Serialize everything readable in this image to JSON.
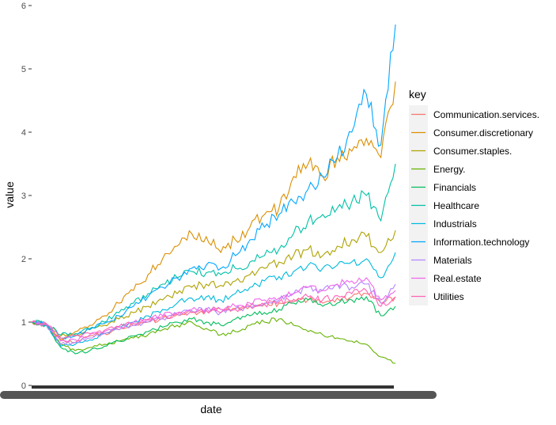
{
  "chart_data": {
    "type": "line",
    "title": "",
    "xlabel": "date",
    "ylabel": "value",
    "ylim": [
      0,
      6
    ],
    "yticks": [
      0,
      1,
      2,
      3,
      4,
      5,
      6
    ],
    "grid": false,
    "legend_placement": "right",
    "legend_title": "key",
    "x": [
      0,
      4,
      8,
      12,
      16,
      20,
      24,
      28,
      32,
      36,
      40,
      44,
      48,
      52,
      56,
      60,
      64,
      68,
      72,
      76,
      80,
      84,
      88,
      92,
      96,
      100
    ],
    "series": [
      {
        "name": "Communication.services.",
        "color": "#F8766D",
        "values": [
          1.0,
          0.95,
          0.72,
          0.68,
          0.78,
          0.82,
          0.88,
          0.95,
          1.0,
          1.05,
          1.12,
          1.15,
          1.18,
          1.2,
          1.22,
          1.25,
          1.28,
          1.3,
          1.32,
          1.35,
          1.3,
          1.38,
          1.4,
          1.45,
          1.3,
          1.4
        ]
      },
      {
        "name": "Consumer.discretionary",
        "color": "#DB8E00",
        "values": [
          1.0,
          0.98,
          0.72,
          0.85,
          0.95,
          1.1,
          1.3,
          1.5,
          1.75,
          2.0,
          2.2,
          2.4,
          2.35,
          2.1,
          2.3,
          2.5,
          2.7,
          2.8,
          3.3,
          3.5,
          3.3,
          3.6,
          3.7,
          3.9,
          3.6,
          4.8
        ]
      },
      {
        "name": "Consumer.staples.",
        "color": "#AEA200",
        "values": [
          1.0,
          0.97,
          0.78,
          0.8,
          0.88,
          0.95,
          1.05,
          1.15,
          1.25,
          1.35,
          1.45,
          1.55,
          1.6,
          1.58,
          1.65,
          1.75,
          1.85,
          1.95,
          2.05,
          2.15,
          2.05,
          2.2,
          2.3,
          2.35,
          2.1,
          2.45
        ]
      },
      {
        "name": "Energy.",
        "color": "#64B200",
        "values": [
          1.0,
          0.95,
          0.65,
          0.55,
          0.6,
          0.65,
          0.7,
          0.75,
          0.8,
          0.88,
          0.95,
          1.0,
          0.9,
          0.8,
          0.85,
          0.95,
          1.0,
          1.05,
          0.95,
          0.85,
          0.8,
          0.75,
          0.7,
          0.65,
          0.45,
          0.35
        ]
      },
      {
        "name": "Financials",
        "color": "#00BD5C",
        "values": [
          1.0,
          0.95,
          0.6,
          0.5,
          0.55,
          0.62,
          0.7,
          0.78,
          0.85,
          0.92,
          1.0,
          1.05,
          1.0,
          0.95,
          1.05,
          1.1,
          1.15,
          1.2,
          1.3,
          1.35,
          1.25,
          1.3,
          1.35,
          1.4,
          1.1,
          1.25
        ]
      },
      {
        "name": "Healthcare",
        "color": "#00C1A7",
        "values": [
          1.0,
          0.98,
          0.8,
          0.82,
          0.9,
          1.0,
          1.15,
          1.3,
          1.45,
          1.6,
          1.7,
          1.8,
          1.78,
          1.75,
          1.85,
          1.95,
          2.05,
          2.15,
          2.4,
          2.6,
          2.7,
          2.8,
          2.9,
          3.0,
          2.6,
          3.5
        ]
      },
      {
        "name": "Industrials",
        "color": "#00BADE",
        "values": [
          1.0,
          0.96,
          0.62,
          0.65,
          0.72,
          0.82,
          0.92,
          1.0,
          1.1,
          1.2,
          1.3,
          1.38,
          1.4,
          1.35,
          1.45,
          1.55,
          1.65,
          1.72,
          1.8,
          1.9,
          1.85,
          1.9,
          1.95,
          2.0,
          1.7,
          2.1
        ]
      },
      {
        "name": "Information.technology",
        "color": "#00A6FF",
        "values": [
          1.0,
          0.97,
          0.75,
          0.78,
          0.88,
          0.98,
          1.1,
          1.25,
          1.4,
          1.55,
          1.7,
          1.85,
          1.9,
          1.85,
          2.05,
          2.3,
          2.5,
          2.7,
          2.9,
          3.1,
          3.3,
          3.6,
          4.0,
          4.6,
          3.8,
          5.7
        ]
      },
      {
        "name": "Materials",
        "color": "#B385FF",
        "values": [
          1.0,
          0.96,
          0.65,
          0.68,
          0.75,
          0.82,
          0.88,
          0.95,
          1.0,
          1.06,
          1.12,
          1.18,
          1.2,
          1.15,
          1.2,
          1.25,
          1.3,
          1.35,
          1.45,
          1.55,
          1.5,
          1.6,
          1.55,
          1.6,
          1.3,
          1.6
        ]
      },
      {
        "name": "Real.estate",
        "color": "#EF67EB",
        "values": [
          1.0,
          0.97,
          0.7,
          0.72,
          0.8,
          0.85,
          0.92,
          1.0,
          1.05,
          1.1,
          1.15,
          1.2,
          1.22,
          1.2,
          1.25,
          1.3,
          1.35,
          1.38,
          1.45,
          1.55,
          1.5,
          1.6,
          1.65,
          1.7,
          1.35,
          1.5
        ]
      },
      {
        "name": "Utilities",
        "color": "#FF63B6",
        "values": [
          1.0,
          0.98,
          0.75,
          0.78,
          0.82,
          0.87,
          0.93,
          0.98,
          1.03,
          1.08,
          1.12,
          1.16,
          1.18,
          1.15,
          1.2,
          1.25,
          1.28,
          1.32,
          1.36,
          1.4,
          1.35,
          1.42,
          1.45,
          1.5,
          1.25,
          1.4
        ]
      }
    ]
  }
}
